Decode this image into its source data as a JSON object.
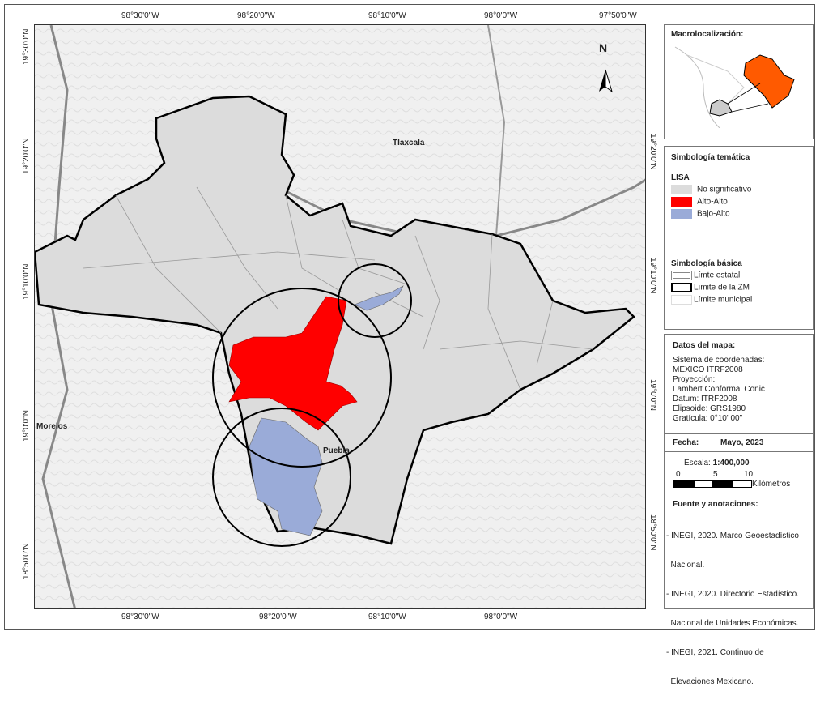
{
  "coords": {
    "top": [
      "98°30'0\"W",
      "98°20'0\"W",
      "98°10'0\"W",
      "98°0'0\"W",
      "97°50'0\"W"
    ],
    "bottom": [
      "98°30'0\"W",
      "98°20'0\"W",
      "98°10'0\"W",
      "98°0'0\"W"
    ],
    "left": [
      "19°30'0\"N",
      "19°20'0\"N",
      "19°10'0\"N",
      "19°0'0\"N",
      "18°50'0\"N"
    ],
    "right": [
      "19°20'0\"N",
      "19°10'0\"N",
      "19°0'0\"N",
      "18°50'0\"N"
    ]
  },
  "places": {
    "tlaxcala": "Tlaxcala",
    "puebla": "Puebla",
    "morelos": "Morelos"
  },
  "north_arrow": "N",
  "macro": {
    "title": "Macrolocalización:"
  },
  "tematica": {
    "title": "Simbología temática",
    "subtitle": "LISA",
    "items": [
      {
        "label": "No significativo",
        "color": "#dcdcdc"
      },
      {
        "label": "Alto-Alto",
        "color": "#ff0000"
      },
      {
        "label": "Bajo-Alto",
        "color": "#9aabd8"
      }
    ]
  },
  "basica": {
    "title": "Simbología básica",
    "items": [
      "Límte estatal",
      "Límite de la ZM",
      "Límite municipal"
    ]
  },
  "datos": {
    "title": "Datos del mapa:",
    "lines": [
      "Sistema de coordenadas:",
      "MEXICO ITRF2008",
      "Proyección:",
      "Lambert Conformal Conic",
      "Datum: ITRF2008",
      "Elipsoide: GRS1980",
      "Gratícula: 0°10' 00\""
    ]
  },
  "fecha": {
    "label": "Fecha:",
    "value": "Mayo, 2023"
  },
  "escala": {
    "label": "Escala:",
    "value": "1:400,000",
    "ticks": [
      "0",
      "5",
      "10"
    ],
    "unit": "Kilómetros"
  },
  "fuente": {
    "title": "Fuente y anotaciones:",
    "lines": [
      "- INEGI, 2020. Marco Geoestadístico",
      "  Nacional.",
      "- INEGI, 2020. Directorio Estadístico.",
      "  Nacional de Unidades Económicas.",
      "- INEGI, 2021. Continuo de",
      "  Elevaciones Mexicano."
    ]
  }
}
